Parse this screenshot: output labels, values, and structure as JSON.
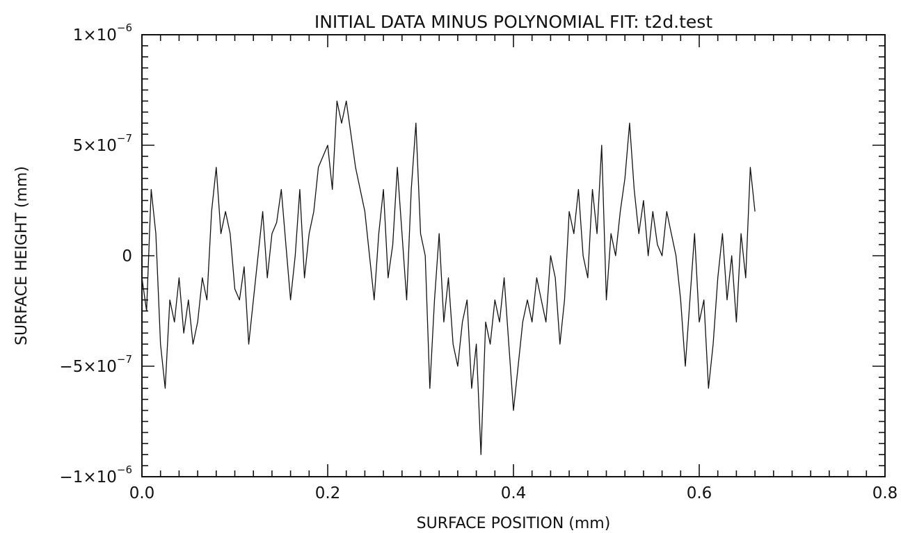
{
  "chart_data": {
    "type": "line",
    "title": "INITIAL DATA MINUS POLYNOMIAL FIT: t2d.test",
    "xlabel": "SURFACE POSITION (mm)",
    "ylabel": "SURFACE HEIGHT (mm)",
    "xlim": [
      0.0,
      0.8
    ],
    "ylim": [
      -1e-06,
      1e-06
    ],
    "x_ticks": [
      0.0,
      0.2,
      0.4,
      0.6,
      0.8
    ],
    "x_tick_labels": [
      "0.0",
      "0.2",
      "0.4",
      "0.6",
      "0.8"
    ],
    "y_ticks": [
      {
        "value": 1e-06,
        "mantissa": "1×10",
        "exponent": "−6"
      },
      {
        "value": 5e-07,
        "mantissa": "5×10",
        "exponent": "−7"
      },
      {
        "value": 0,
        "mantissa": "0",
        "exponent": ""
      },
      {
        "value": -5e-07,
        "mantissa": "−5×10",
        "exponent": "−7"
      },
      {
        "value": -1e-06,
        "mantissa": "−1×10",
        "exponent": "−6"
      }
    ],
    "grid": false,
    "legend": "none",
    "series": [
      {
        "x": [
          0.0,
          0.005,
          0.01,
          0.015,
          0.02,
          0.025,
          0.03,
          0.035,
          0.04,
          0.045,
          0.05,
          0.055,
          0.06,
          0.065,
          0.07,
          0.075,
          0.08,
          0.085,
          0.09,
          0.095,
          0.1,
          0.105,
          0.11,
          0.115,
          0.12,
          0.125,
          0.13,
          0.135,
          0.14,
          0.145,
          0.15,
          0.155,
          0.16,
          0.165,
          0.17,
          0.175,
          0.18,
          0.185,
          0.19,
          0.195,
          0.2,
          0.205,
          0.21,
          0.215,
          0.22,
          0.225,
          0.23,
          0.235,
          0.24,
          0.245,
          0.25,
          0.255,
          0.26,
          0.265,
          0.27,
          0.275,
          0.28,
          0.285,
          0.29,
          0.295,
          0.3,
          0.305,
          0.31,
          0.315,
          0.32,
          0.325,
          0.33,
          0.335,
          0.34,
          0.345,
          0.35,
          0.355,
          0.36,
          0.365,
          0.37,
          0.375,
          0.38,
          0.385,
          0.39,
          0.395,
          0.4,
          0.405,
          0.41,
          0.415,
          0.42,
          0.425,
          0.43,
          0.435,
          0.44,
          0.445,
          0.45,
          0.455,
          0.46,
          0.465,
          0.47,
          0.475,
          0.48,
          0.485,
          0.49,
          0.495,
          0.5,
          0.505,
          0.51,
          0.515,
          0.52,
          0.525,
          0.53,
          0.535,
          0.54,
          0.545,
          0.55,
          0.555,
          0.56,
          0.565,
          0.57,
          0.575,
          0.58,
          0.585,
          0.59,
          0.595,
          0.6,
          0.605,
          0.61,
          0.615,
          0.62,
          0.625,
          0.63,
          0.635,
          0.64,
          0.645,
          0.65,
          0.655,
          0.66
        ],
        "y": [
          -0.1,
          -0.25,
          0.3,
          0.1,
          -0.4,
          -0.6,
          -0.2,
          -0.3,
          -0.1,
          -0.35,
          -0.2,
          -0.4,
          -0.3,
          -0.1,
          -0.2,
          0.2,
          0.4,
          0.1,
          0.2,
          0.1,
          -0.15,
          -0.2,
          -0.05,
          -0.4,
          -0.2,
          0.0,
          0.2,
          -0.1,
          0.1,
          0.15,
          0.3,
          0.05,
          -0.2,
          0.0,
          0.3,
          -0.1,
          0.1,
          0.2,
          0.4,
          0.45,
          0.5,
          0.3,
          0.7,
          0.6,
          0.7,
          0.55,
          0.4,
          0.3,
          0.2,
          0.0,
          -0.2,
          0.1,
          0.3,
          -0.1,
          0.05,
          0.4,
          0.1,
          -0.2,
          0.3,
          0.6,
          0.1,
          0.0,
          -0.6,
          -0.2,
          0.1,
          -0.3,
          -0.1,
          -0.4,
          -0.5,
          -0.3,
          -0.2,
          -0.6,
          -0.4,
          -0.9,
          -0.3,
          -0.4,
          -0.2,
          -0.3,
          -0.1,
          -0.4,
          -0.7,
          -0.5,
          -0.3,
          -0.2,
          -0.3,
          -0.1,
          -0.2,
          -0.3,
          0.0,
          -0.1,
          -0.4,
          -0.2,
          0.2,
          0.1,
          0.3,
          0.0,
          -0.1,
          0.3,
          0.1,
          0.5,
          -0.2,
          0.1,
          0.0,
          0.2,
          0.35,
          0.6,
          0.3,
          0.1,
          0.25,
          0.0,
          0.2,
          0.05,
          0.0,
          0.2,
          0.1,
          0.0,
          -0.2,
          -0.5,
          -0.2,
          0.1,
          -0.3,
          -0.2,
          -0.6,
          -0.4,
          -0.1,
          0.1,
          -0.2,
          0.0,
          -0.3,
          0.1,
          -0.1,
          0.4,
          0.2
        ]
      }
    ]
  }
}
